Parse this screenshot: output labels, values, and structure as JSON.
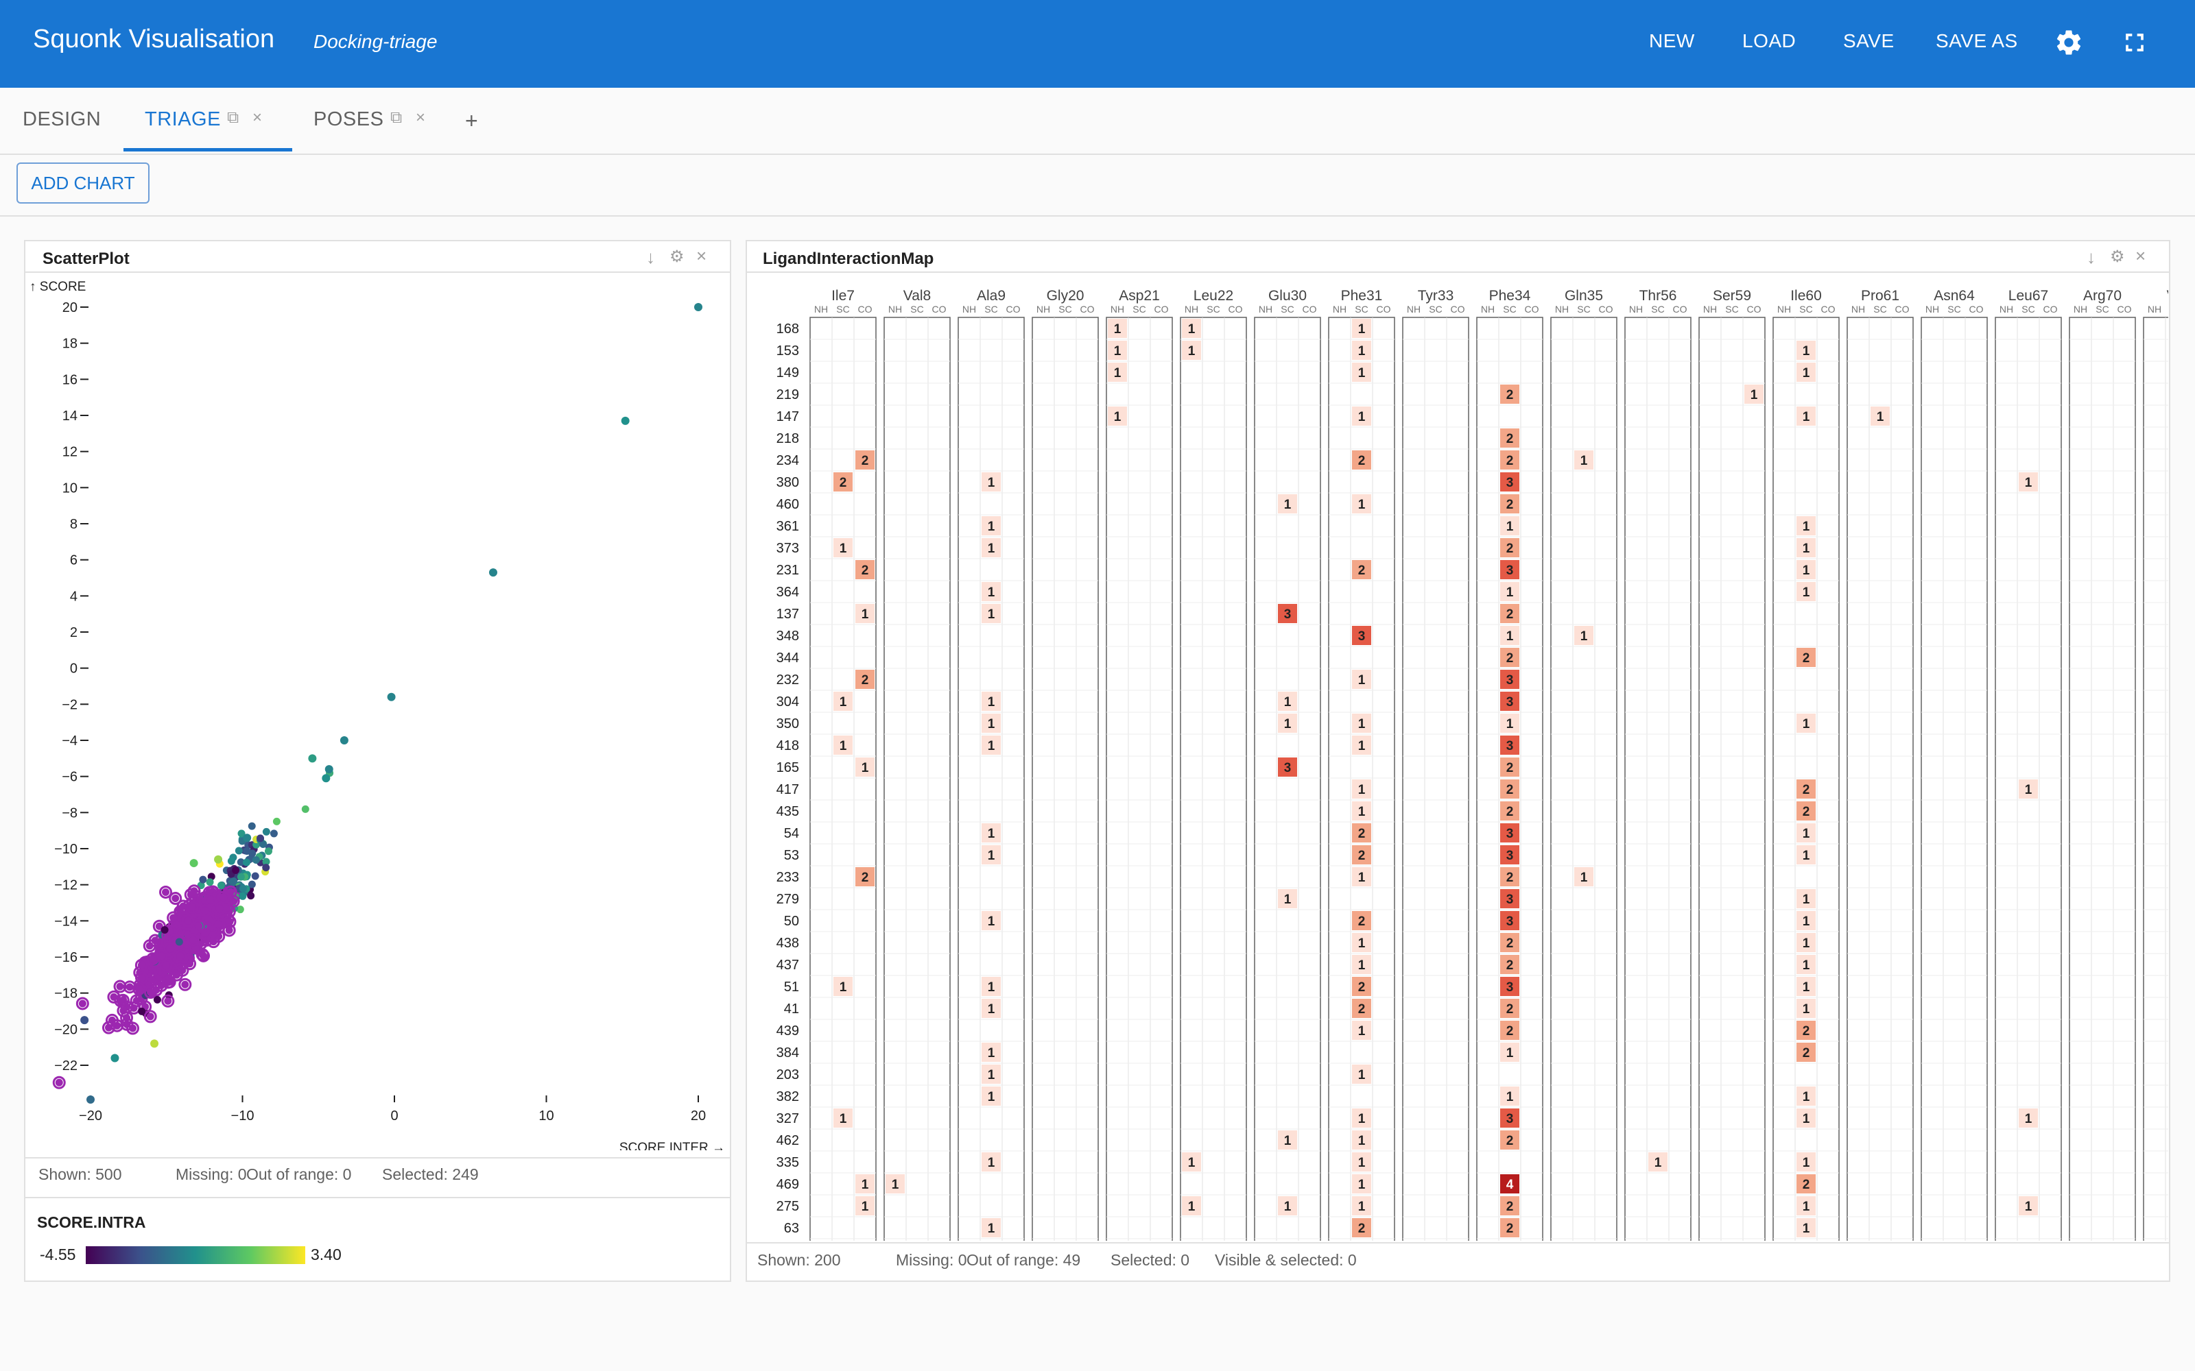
{
  "header": {
    "title": "Squonk Visualisation",
    "subtitle": "Docking-triage",
    "nav": [
      "NEW",
      "LOAD",
      "SAVE",
      "SAVE AS"
    ],
    "icons": [
      "gear-icon",
      "fullscreen-icon"
    ]
  },
  "tabs": [
    {
      "label": "DESIGN",
      "active": false
    },
    {
      "label": "TRIAGE",
      "active": true
    },
    {
      "label": "POSES",
      "active": false
    }
  ],
  "tab_add": "+",
  "tab_icons": {
    "copy": "⧉",
    "close": "×"
  },
  "add_chart": "ADD CHART",
  "panel_icons": {
    "download": "↓",
    "settings": "⚙",
    "close": "×"
  },
  "scatter": {
    "title": "ScatterPlot",
    "ylabel": "↑ SCORE",
    "xlabel": "SCORE.INTER →",
    "stats": {
      "shown": "Shown: 500",
      "missing": "Missing: 0",
      "out_of_range": "Out of range: 0",
      "selected": "Selected: 249"
    },
    "legend": {
      "title": "SCORE.INTRA",
      "min": "-4.55",
      "max": "3.40"
    },
    "colors": [
      "#440154",
      "#3b528b",
      "#21918c",
      "#5ec962",
      "#fde725"
    ],
    "selected_color": "#9c27b0",
    "chart_data": {
      "type": "scatter",
      "xlabel": "SCORE.INTER",
      "ylabel": "SCORE",
      "xlim": [
        -21,
        21
      ],
      "ylim": [
        -24,
        21
      ],
      "x_ticks": [
        "−20",
        "−10",
        "0",
        "10",
        "20"
      ],
      "y_ticks": [
        "20",
        "18",
        "16",
        "14",
        "12",
        "10",
        "8",
        "6",
        "4",
        "2",
        "0",
        "−2",
        "−4",
        "−6",
        "−8",
        "−10",
        "−12",
        "−14",
        "−16",
        "−18",
        "−20",
        "−22"
      ],
      "outliers": [
        [
          20,
          20
        ],
        [
          15.2,
          13.7
        ],
        [
          6.5,
          5.3
        ],
        [
          -0.2,
          -1.6
        ],
        [
          -3.3,
          -4.0
        ],
        [
          -4.3,
          -5.6
        ],
        [
          -4.5,
          -6.1
        ],
        [
          -5.4,
          -5.0
        ],
        [
          -9.7,
          -9.4
        ],
        [
          -11.6,
          -10.6
        ],
        [
          -13.2,
          -10.8
        ],
        [
          -20.4,
          -19.5
        ],
        [
          -18.4,
          -21.6
        ],
        [
          -20.0,
          -23.9
        ],
        [
          -15.8,
          -20.8
        ]
      ]
    }
  },
  "lim": {
    "title": "LigandInteractionMap",
    "subcols": [
      "NH",
      "SC",
      "CO"
    ],
    "residues": [
      "Ile7",
      "Val8",
      "Ala9",
      "Gly20",
      "Asp21",
      "Leu22",
      "Glu30",
      "Phe31",
      "Tyr33",
      "Phe34",
      "Gln35",
      "Thr56",
      "Ser59",
      "Ile60",
      "Pro61",
      "Asn64",
      "Leu67",
      "Arg70",
      "Val"
    ],
    "rows": [
      "168",
      "153",
      "149",
      "219",
      "147",
      "218",
      "234",
      "380",
      "460",
      "361",
      "373",
      "231",
      "364",
      "137",
      "348",
      "344",
      "232",
      "304",
      "350",
      "418",
      "165",
      "417",
      "435",
      "54",
      "53",
      "233",
      "279",
      "50",
      "438",
      "437",
      "51",
      "41",
      "439",
      "384",
      "203",
      "382",
      "327",
      "462",
      "335",
      "469",
      "275",
      "63"
    ],
    "cells": [
      [
        0,
        4,
        0,
        1
      ],
      [
        0,
        5,
        0,
        1
      ],
      [
        0,
        7,
        1,
        1
      ],
      [
        1,
        4,
        0,
        1
      ],
      [
        1,
        5,
        0,
        1
      ],
      [
        1,
        7,
        1,
        1
      ],
      [
        1,
        13,
        1,
        1
      ],
      [
        2,
        4,
        0,
        1
      ],
      [
        2,
        7,
        1,
        1
      ],
      [
        2,
        13,
        1,
        1
      ],
      [
        3,
        9,
        1,
        2
      ],
      [
        3,
        12,
        2,
        1
      ],
      [
        4,
        4,
        0,
        1
      ],
      [
        4,
        7,
        1,
        1
      ],
      [
        4,
        13,
        1,
        1
      ],
      [
        4,
        14,
        1,
        1
      ],
      [
        5,
        9,
        1,
        2
      ],
      [
        6,
        0,
        2,
        2
      ],
      [
        6,
        7,
        1,
        2
      ],
      [
        6,
        9,
        1,
        2
      ],
      [
        6,
        10,
        1,
        1
      ],
      [
        7,
        0,
        1,
        2
      ],
      [
        7,
        2,
        1,
        1
      ],
      [
        7,
        9,
        1,
        3
      ],
      [
        7,
        16,
        1,
        1
      ],
      [
        8,
        6,
        1,
        1
      ],
      [
        8,
        7,
        1,
        1
      ],
      [
        8,
        9,
        1,
        2
      ],
      [
        9,
        2,
        1,
        1
      ],
      [
        9,
        9,
        1,
        1
      ],
      [
        9,
        13,
        1,
        1
      ],
      [
        10,
        0,
        1,
        1
      ],
      [
        10,
        2,
        1,
        1
      ],
      [
        10,
        9,
        1,
        2
      ],
      [
        10,
        13,
        1,
        1
      ],
      [
        11,
        0,
        2,
        2
      ],
      [
        11,
        7,
        1,
        2
      ],
      [
        11,
        9,
        1,
        3
      ],
      [
        11,
        13,
        1,
        1
      ],
      [
        12,
        2,
        1,
        1
      ],
      [
        12,
        9,
        1,
        1
      ],
      [
        12,
        13,
        1,
        1
      ],
      [
        13,
        0,
        2,
        1
      ],
      [
        13,
        2,
        1,
        1
      ],
      [
        13,
        6,
        1,
        3
      ],
      [
        13,
        9,
        1,
        2
      ],
      [
        14,
        7,
        1,
        3
      ],
      [
        14,
        9,
        1,
        1
      ],
      [
        14,
        10,
        1,
        1
      ],
      [
        15,
        9,
        1,
        2
      ],
      [
        15,
        13,
        1,
        2
      ],
      [
        16,
        0,
        2,
        2
      ],
      [
        16,
        7,
        1,
        1
      ],
      [
        16,
        9,
        1,
        3
      ],
      [
        17,
        0,
        1,
        1
      ],
      [
        17,
        2,
        1,
        1
      ],
      [
        17,
        6,
        1,
        1
      ],
      [
        17,
        9,
        1,
        3
      ],
      [
        18,
        2,
        1,
        1
      ],
      [
        18,
        6,
        1,
        1
      ],
      [
        18,
        7,
        1,
        1
      ],
      [
        18,
        9,
        1,
        1
      ],
      [
        18,
        13,
        1,
        1
      ],
      [
        19,
        0,
        1,
        1
      ],
      [
        19,
        2,
        1,
        1
      ],
      [
        19,
        7,
        1,
        1
      ],
      [
        19,
        9,
        1,
        3
      ],
      [
        20,
        0,
        2,
        1
      ],
      [
        20,
        6,
        1,
        3
      ],
      [
        20,
        9,
        1,
        2
      ],
      [
        21,
        7,
        1,
        1
      ],
      [
        21,
        9,
        1,
        2
      ],
      [
        21,
        13,
        1,
        2
      ],
      [
        21,
        16,
        1,
        1
      ],
      [
        22,
        7,
        1,
        1
      ],
      [
        22,
        9,
        1,
        2
      ],
      [
        22,
        13,
        1,
        2
      ],
      [
        23,
        2,
        1,
        1
      ],
      [
        23,
        7,
        1,
        2
      ],
      [
        23,
        9,
        1,
        3
      ],
      [
        23,
        13,
        1,
        1
      ],
      [
        24,
        2,
        1,
        1
      ],
      [
        24,
        7,
        1,
        2
      ],
      [
        24,
        9,
        1,
        3
      ],
      [
        24,
        13,
        1,
        1
      ],
      [
        25,
        0,
        2,
        2
      ],
      [
        25,
        7,
        1,
        1
      ],
      [
        25,
        9,
        1,
        2
      ],
      [
        25,
        10,
        1,
        1
      ],
      [
        26,
        6,
        1,
        1
      ],
      [
        26,
        9,
        1,
        3
      ],
      [
        26,
        13,
        1,
        1
      ],
      [
        27,
        2,
        1,
        1
      ],
      [
        27,
        7,
        1,
        2
      ],
      [
        27,
        9,
        1,
        3
      ],
      [
        27,
        13,
        1,
        1
      ],
      [
        28,
        7,
        1,
        1
      ],
      [
        28,
        9,
        1,
        2
      ],
      [
        28,
        13,
        1,
        1
      ],
      [
        29,
        7,
        1,
        1
      ],
      [
        29,
        9,
        1,
        2
      ],
      [
        29,
        13,
        1,
        1
      ],
      [
        30,
        0,
        1,
        1
      ],
      [
        30,
        2,
        1,
        1
      ],
      [
        30,
        7,
        1,
        2
      ],
      [
        30,
        9,
        1,
        3
      ],
      [
        30,
        13,
        1,
        1
      ],
      [
        31,
        2,
        1,
        1
      ],
      [
        31,
        7,
        1,
        2
      ],
      [
        31,
        9,
        1,
        2
      ],
      [
        31,
        13,
        1,
        1
      ],
      [
        32,
        7,
        1,
        1
      ],
      [
        32,
        9,
        1,
        2
      ],
      [
        32,
        13,
        1,
        2
      ],
      [
        33,
        2,
        1,
        1
      ],
      [
        33,
        9,
        1,
        1
      ],
      [
        33,
        13,
        1,
        2
      ],
      [
        34,
        2,
        1,
        1
      ],
      [
        34,
        7,
        1,
        1
      ],
      [
        35,
        2,
        1,
        1
      ],
      [
        35,
        9,
        1,
        1
      ],
      [
        35,
        13,
        1,
        1
      ],
      [
        36,
        0,
        1,
        1
      ],
      [
        36,
        7,
        1,
        1
      ],
      [
        36,
        9,
        1,
        3
      ],
      [
        36,
        13,
        1,
        1
      ],
      [
        36,
        16,
        1,
        1
      ],
      [
        37,
        6,
        1,
        1
      ],
      [
        37,
        7,
        1,
        1
      ],
      [
        37,
        9,
        1,
        2
      ],
      [
        38,
        2,
        1,
        1
      ],
      [
        38,
        5,
        0,
        1
      ],
      [
        38,
        7,
        1,
        1
      ],
      [
        38,
        11,
        1,
        1
      ],
      [
        38,
        13,
        1,
        1
      ],
      [
        39,
        0,
        2,
        1
      ],
      [
        39,
        1,
        0,
        1
      ],
      [
        39,
        7,
        1,
        1
      ],
      [
        39,
        9,
        1,
        4
      ],
      [
        39,
        13,
        1,
        2
      ],
      [
        40,
        0,
        2,
        1
      ],
      [
        40,
        5,
        0,
        1
      ],
      [
        40,
        6,
        1,
        1
      ],
      [
        40,
        7,
        1,
        1
      ],
      [
        40,
        9,
        1,
        2
      ],
      [
        40,
        13,
        1,
        1
      ],
      [
        40,
        16,
        1,
        1
      ],
      [
        41,
        2,
        1,
        1
      ],
      [
        41,
        7,
        1,
        2
      ],
      [
        41,
        9,
        1,
        2
      ],
      [
        41,
        13,
        1,
        1
      ]
    ],
    "partial": [
      [
        7,
        18
      ],
      [
        21,
        18
      ],
      [
        32,
        18
      ]
    ],
    "value_colors": [
      "#fde0d6",
      "#f3a688",
      "#e45a46",
      "#b71c1c"
    ],
    "stats": {
      "shown": "Shown: 200",
      "missing": "Missing: 0",
      "out_of_range": "Out of range: 49",
      "selected": "Selected: 0",
      "visible_selected": "Visible & selected: 0"
    }
  }
}
